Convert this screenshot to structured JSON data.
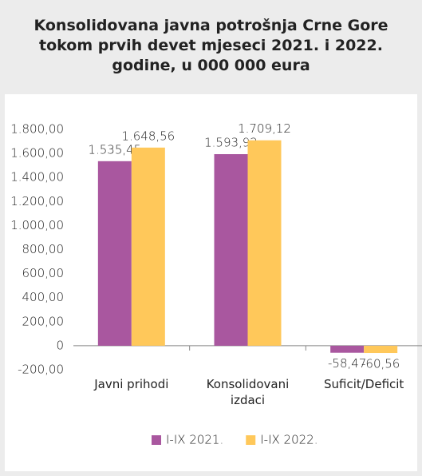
{
  "chart_data": {
    "type": "bar",
    "title": "Konsolidovana javna potrošnja Crne Gore tokom prvih devet mjeseci 2021. i 2022. godine, u 000 000 eura",
    "categories": [
      "Javni prihodi",
      "Konsolidovani izdaci",
      "Suficit/Deficit"
    ],
    "series": [
      {
        "name": "I-IX 2021.",
        "color": "#a9579f",
        "values": [
          1535.45,
          1593.92,
          -58.47
        ],
        "value_labels": [
          "1.535,45",
          "1.593,92",
          "-58,47"
        ]
      },
      {
        "name": "I-IX 2022.",
        "color": "#ffc85a",
        "values": [
          1648.56,
          1709.12,
          -60.56
        ],
        "value_labels": [
          "1.648,56",
          "1.709,12",
          "-60,56"
        ]
      }
    ],
    "ylim": [
      -200,
      1800
    ],
    "yticks": [
      {
        "value": -200,
        "label": "-200,00"
      },
      0,
      {
        "value": 200,
        "label": "200,00"
      },
      {
        "value": 400,
        "label": "400,00"
      },
      {
        "value": 600,
        "label": "600,00"
      },
      {
        "value": 800,
        "label": "800,00"
      },
      {
        "value": 1000,
        "label": "1.000,00"
      },
      {
        "value": 1200,
        "label": "1.200,00"
      },
      {
        "value": 1400,
        "label": "1.400,00"
      },
      {
        "value": 1600,
        "label": "1.600,00"
      },
      {
        "value": 1800,
        "label": "1.800,00"
      }
    ],
    "legend": "bottom",
    "grid": false
  }
}
